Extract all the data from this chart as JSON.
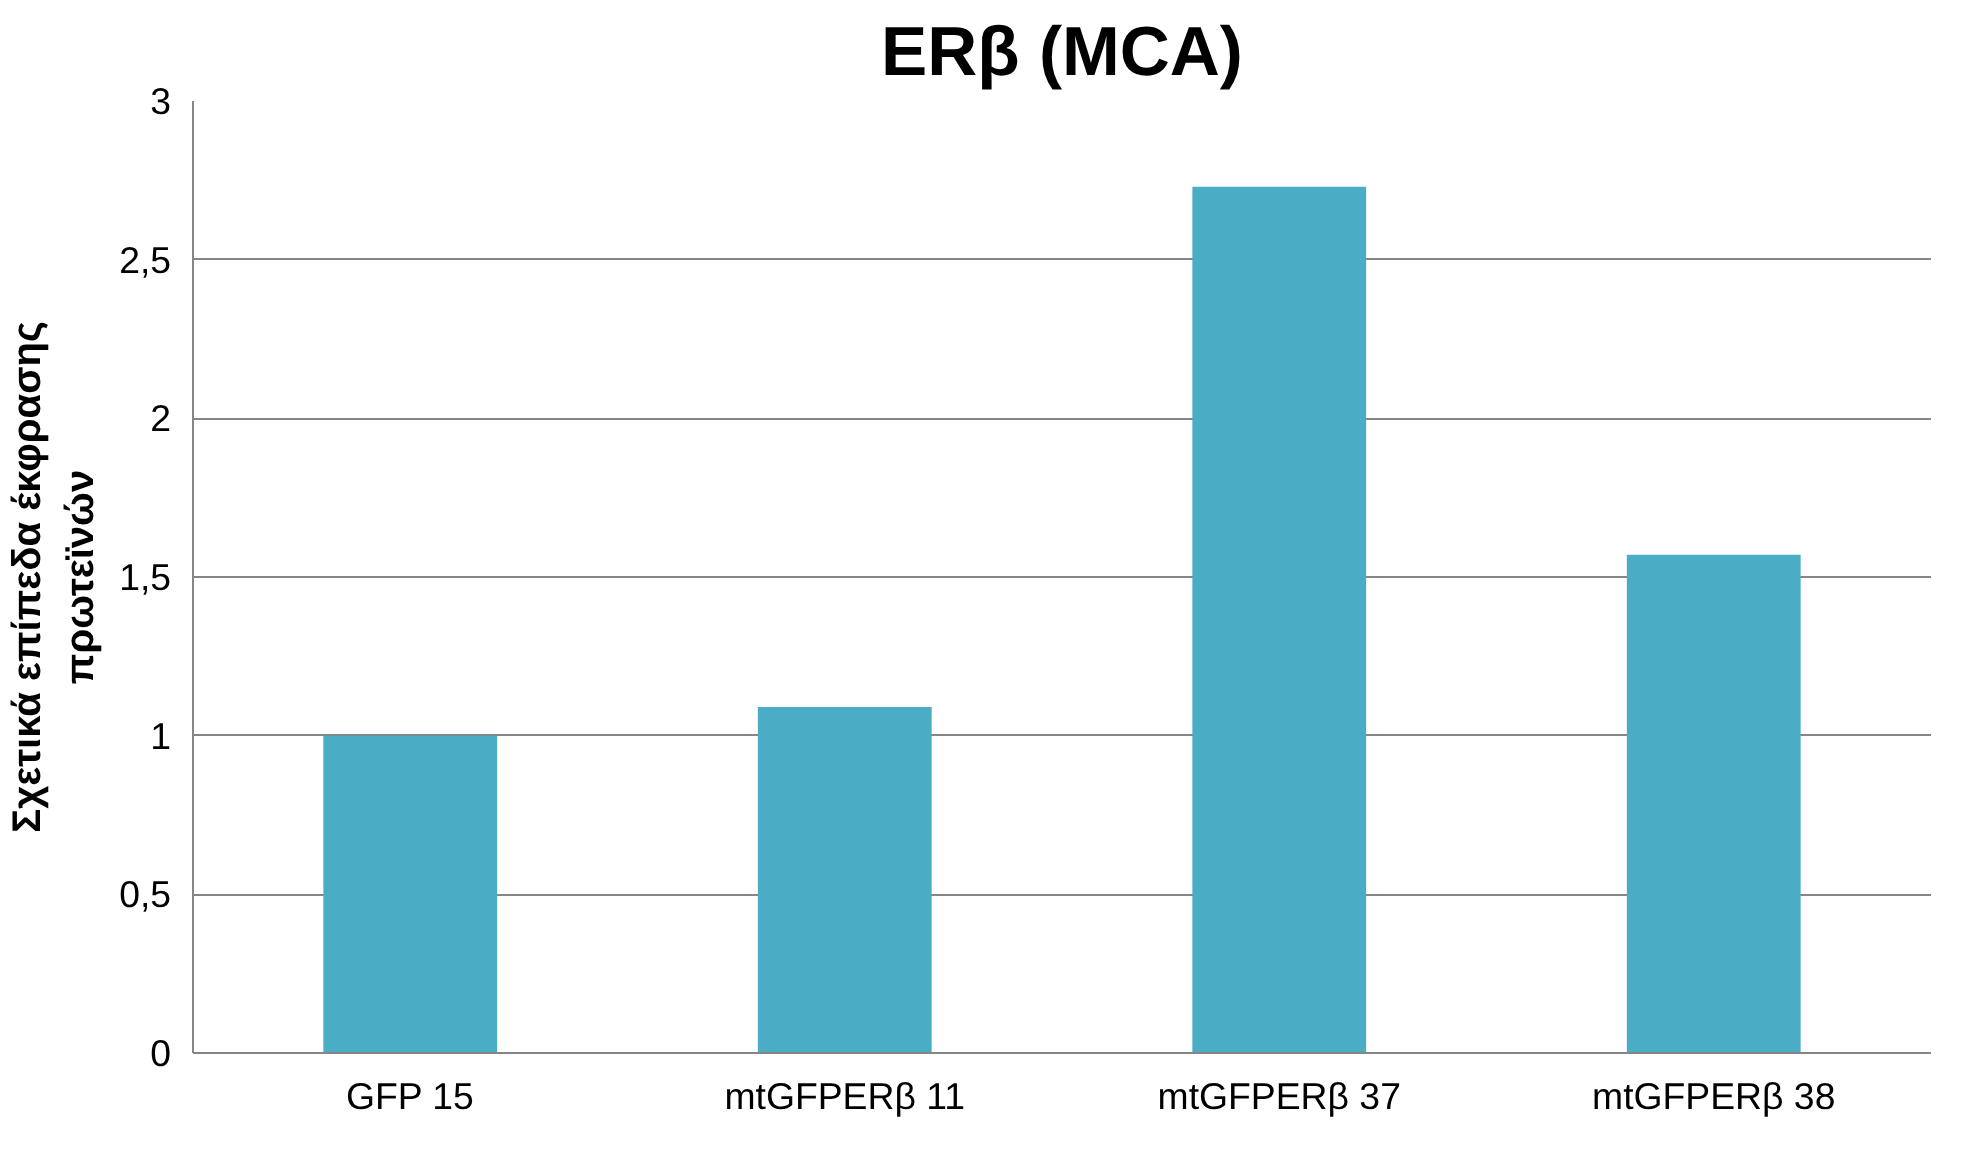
{
  "chart_data": {
    "type": "bar",
    "title": "ERβ (MCA)",
    "ylabel": "Σχετικά επίπεδα έκφρασης\nπρωτεϊνών",
    "categories": [
      "GFP 15",
      "mtGFPERβ 11",
      "mtGFPERβ 37",
      "mtGFPERβ 38"
    ],
    "values": [
      1.0,
      1.09,
      2.73,
      1.57
    ],
    "color": "#4bacc6",
    "ylim": [
      0,
      3
    ],
    "yticks": [
      0,
      {
        "value": 0.5,
        "label": "0,5"
      },
      1,
      {
        "value": 1.5,
        "label": "1,5"
      },
      2,
      {
        "value": 2.5,
        "label": "2,5"
      },
      3
    ],
    "grid": "y"
  }
}
